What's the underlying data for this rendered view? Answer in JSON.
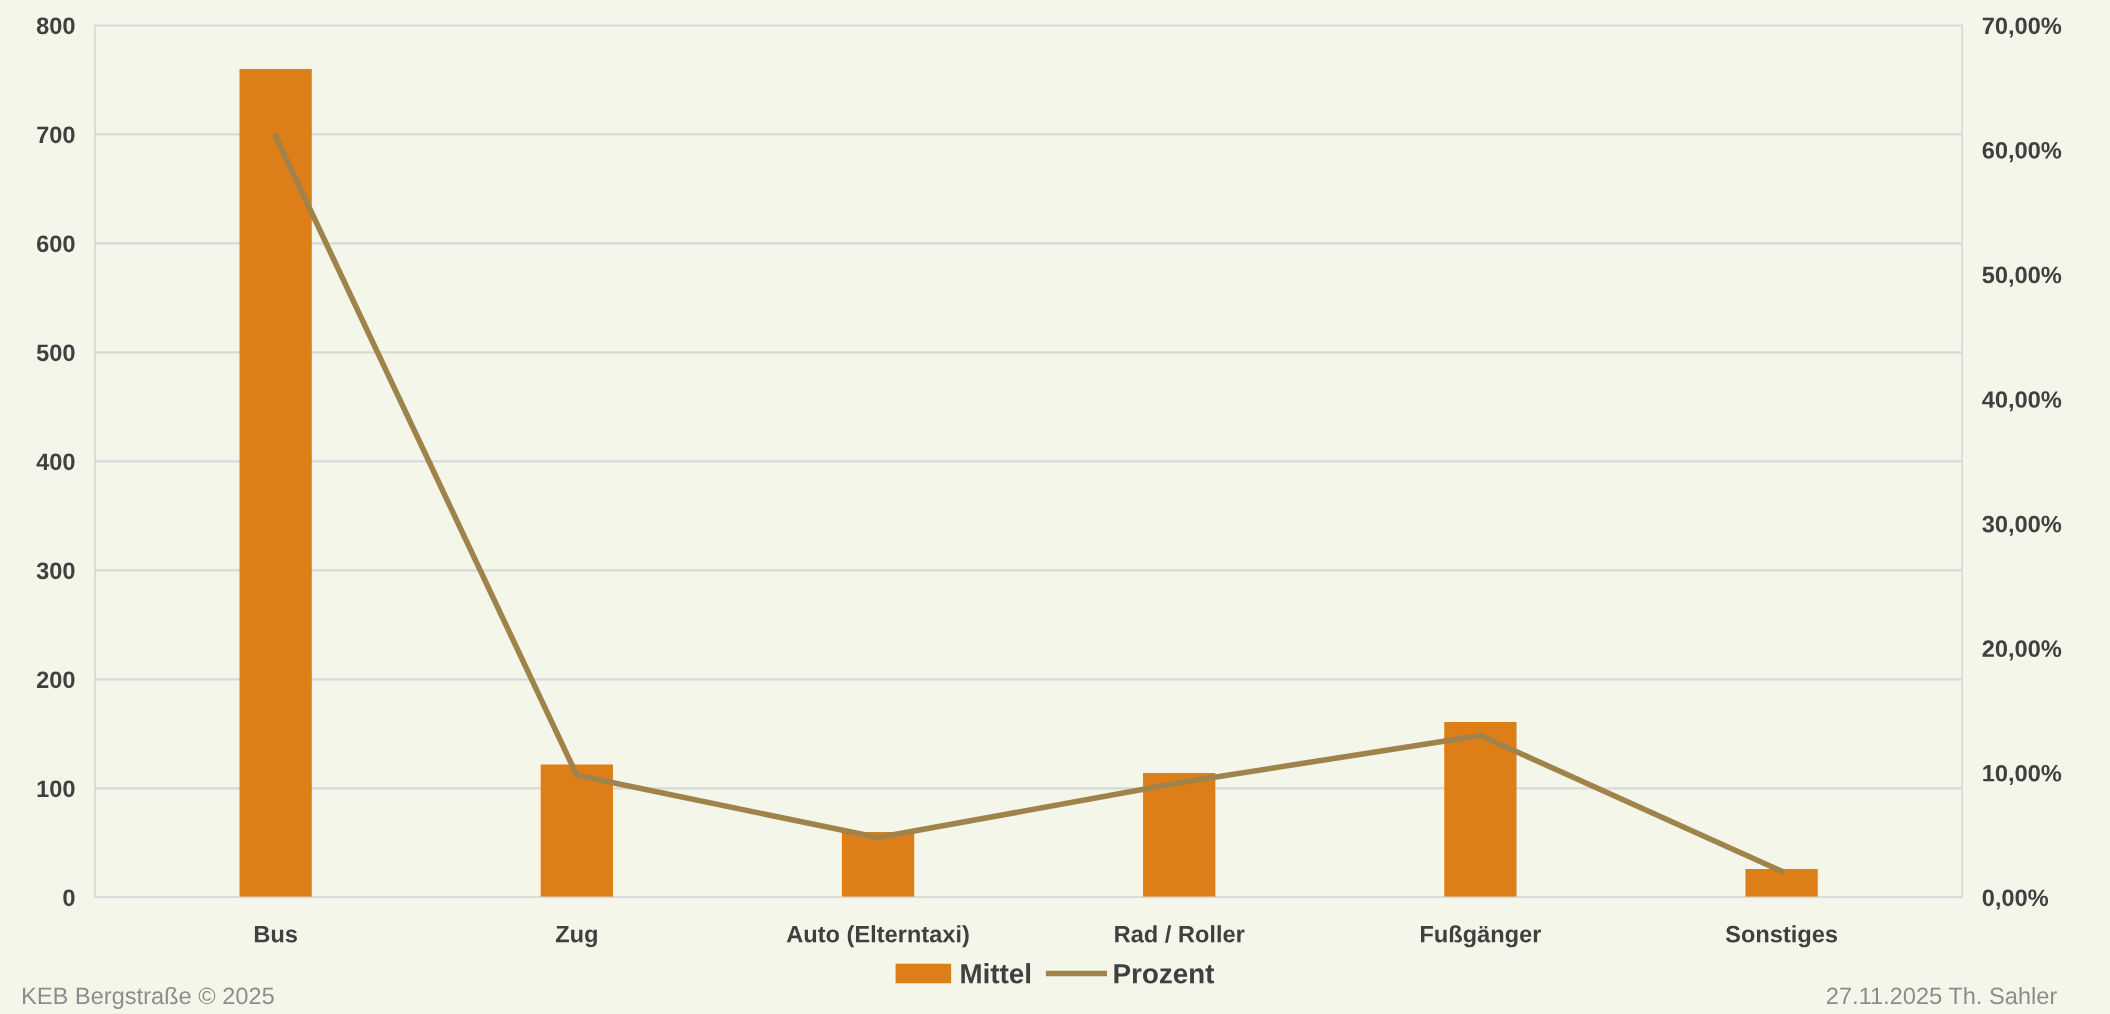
{
  "chart_data": {
    "type": "bar",
    "categories": [
      "Bus",
      "Zug",
      "Auto (Elterntaxi)",
      "Rad / Roller",
      "Fußgänger",
      "Sonstiges"
    ],
    "series": [
      {
        "name": "Mittel",
        "color": "#de7e18",
        "values": [
          760,
          122,
          60,
          114,
          161,
          26
        ]
      },
      {
        "name": "Prozent",
        "type": "line",
        "axis": "y2",
        "color": "#a0824b",
        "values": [
          61.1,
          9.8,
          4.8,
          9.2,
          13.0,
          2.1
        ]
      }
    ],
    "ylim": [
      0,
      800
    ],
    "yticks": [
      0,
      100,
      200,
      300,
      400,
      500,
      600,
      700,
      800
    ],
    "y2lim": [
      0,
      70
    ],
    "y2ticks": [
      {
        "value": 0,
        "label": "0,00%"
      },
      {
        "value": 10,
        "label": "10,00%"
      },
      {
        "value": 20,
        "label": "20,00%"
      },
      {
        "value": 30,
        "label": "30,00%"
      },
      {
        "value": 40,
        "label": "40,00%"
      },
      {
        "value": 50,
        "label": "50,00%"
      },
      {
        "value": 60,
        "label": "60,00%"
      },
      {
        "value": 70,
        "label": "70,00%"
      }
    ],
    "grid": "y",
    "legend": "bottom",
    "marker": "none",
    "annotations": [
      "KEB Bergstraße © 2025",
      "27.11.2025 Th. Sahler"
    ]
  }
}
